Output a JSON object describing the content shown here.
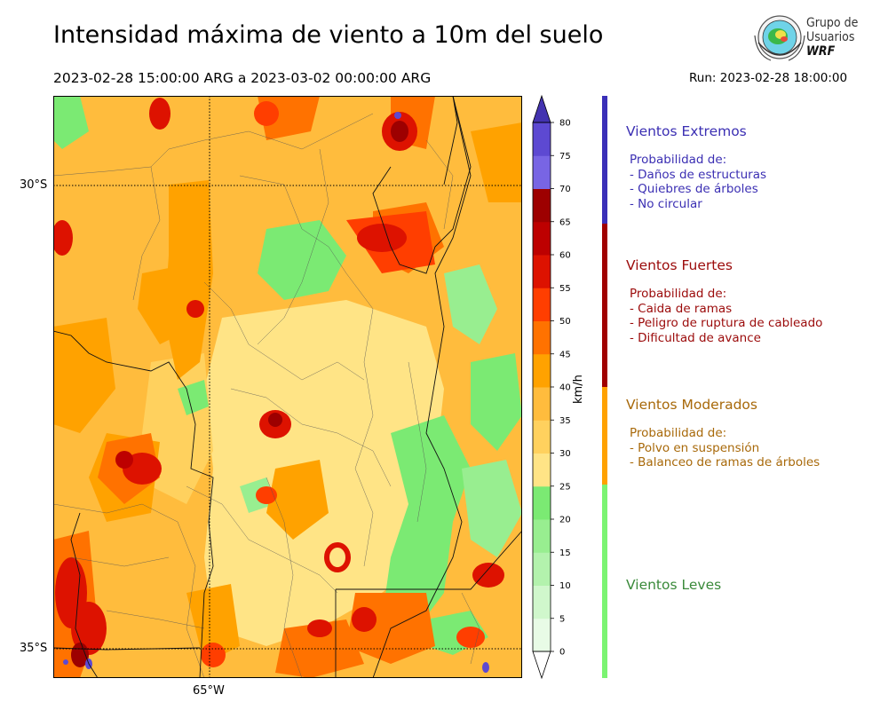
{
  "title": "Intensidad máxima de viento a 10m del suelo",
  "period": "2023-02-28 15:00:00 ARG  a  2023-03-02 00:00:00 ARG",
  "run": "Run: 2023-02-28 18:00:00",
  "logo": {
    "line1": "Grupo de",
    "line2": "Usuarios",
    "line3": "WRF"
  },
  "axes": {
    "lat_labels": [
      "30°S",
      "35°S"
    ],
    "lon_labels": [
      "65°W"
    ]
  },
  "colorbar": {
    "unit": "km/h",
    "ticks": [
      "0",
      "5",
      "10",
      "15",
      "20",
      "25",
      "30",
      "35",
      "40",
      "45",
      "50",
      "55",
      "60",
      "65",
      "70",
      "75",
      "80"
    ],
    "colors": [
      "#e8fbe6",
      "#d0f7cc",
      "#b3f2ad",
      "#98ee90",
      "#7bea73",
      "#ffe486",
      "#ffd15e",
      "#ffbc3d",
      "#ffa200",
      "#ff7200",
      "#ff3e00",
      "#dd1200",
      "#bd0000",
      "#9d0000",
      "#7865e4",
      "#5d49d2",
      "#4a3ab8"
    ],
    "extend_low_color": "#ffffff",
    "extend_high_color": "#4333b0"
  },
  "categories": [
    {
      "title": "Vientos Extremos",
      "color": "#3b2fb3",
      "bar_color": "#3a2fb8",
      "desc": [
        "Probabilidad de:",
        "- Daños de estructuras",
        "- Quiebres de árboles",
        "- No circular"
      ]
    },
    {
      "title": "Vientos Fuertes",
      "color": "#9b0a0a",
      "bar_color": "#a00000",
      "desc": [
        "Probabilidad de:",
        "- Caida de ramas",
        "- Peligro de ruptura de cableado",
        "- Dificultad de avance"
      ]
    },
    {
      "title": "Vientos Moderados",
      "color": "#a8690a",
      "bar_color": "#ffa200",
      "desc": [
        "Probabilidad de:",
        "- Polvo en suspensión",
        "- Balanceo de ramas de árboles"
      ]
    },
    {
      "title": "Vientos Leves",
      "color": "#3a8a3a",
      "bar_color": "#7bf472",
      "desc": []
    }
  ]
}
